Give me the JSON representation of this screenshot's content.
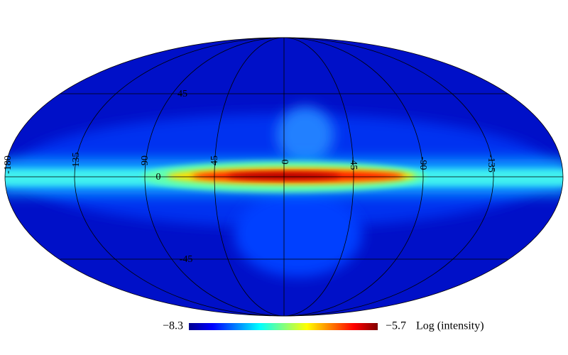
{
  "map": {
    "longitude_labels": [
      "-180",
      "135",
      "90",
      "45",
      "0",
      "-45",
      "-90",
      "-135"
    ],
    "latitude_labels": [
      "45",
      "0",
      "-45"
    ],
    "colorbar": {
      "min_label": "−8.3",
      "max_label": "−5.7",
      "title": "Log (intensity)"
    }
  }
}
